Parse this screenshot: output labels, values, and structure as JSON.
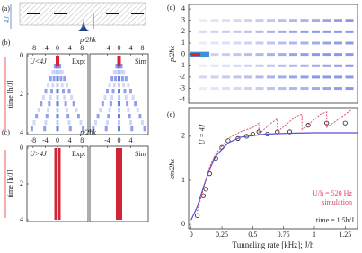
{
  "panel_labels": [
    "(a)",
    "(b)",
    "(c)",
    "(d)",
    "(e)"
  ],
  "a": {
    "scale_label": "4J"
  },
  "b": {
    "x_title": "p/2ħk",
    "left_xticks": [
      -8,
      -4,
      0,
      4,
      8
    ],
    "right_xticks": [
      -4,
      0,
      4,
      8
    ],
    "xlim": [
      -10,
      10
    ],
    "y_title": "time [h/J]",
    "yticks": [
      0,
      2,
      4
    ],
    "ylim": [
      0,
      4
    ],
    "regime": "U<4J",
    "left_label": "Expt",
    "right_label": "Sim"
  },
  "c": {
    "x_title": "p/2ħk",
    "left_xticks": [
      -8,
      -4,
      0,
      4,
      8
    ],
    "right_xticks": [
      -4,
      0,
      4
    ],
    "xlim": [
      -10,
      10
    ],
    "y_title": "time [h/J]",
    "yticks": [
      0,
      2,
      4
    ],
    "ylim": [
      0,
      4
    ],
    "regime": "U>4J",
    "left_label": "Expt",
    "right_label": "Sim"
  },
  "d": {
    "y_title": "p/2ħk",
    "yticks": [
      -4,
      -3,
      -2,
      -1,
      0,
      1,
      2,
      3,
      4
    ],
    "ylim": [
      -4.3,
      4.4
    ]
  },
  "e": {
    "type": "scatter",
    "x_title": "Tunneling rate [kHz]; J/h",
    "y_title": "σn/2ħk",
    "xlim": [
      -0.02,
      1.35
    ],
    "ylim": [
      -0.1,
      2.65
    ],
    "xticks": [
      0,
      0.25,
      0.5,
      0.75,
      1,
      1.25
    ],
    "yticks": [
      0,
      1,
      2
    ],
    "threshold_x": 0.13,
    "series": [
      {
        "name": "Expt",
        "color": "#222222",
        "x": [
          0.05,
          0.1,
          0.12,
          0.15,
          0.2,
          0.25,
          0.3,
          0.38,
          0.45,
          0.5,
          0.55,
          0.62,
          0.7,
          0.8,
          0.95,
          1.1,
          1.25
        ],
        "values": [
          0.2,
          0.65,
          0.8,
          1.15,
          1.5,
          1.75,
          1.9,
          1.95,
          2.0,
          2.05,
          2.1,
          2.05,
          2.1,
          2.1,
          2.25,
          2.3,
          2.3
        ]
      },
      {
        "name": "U/h = 520 Hz",
        "color": "#5a4fd0",
        "x": [
          0,
          0.05,
          0.1,
          0.15,
          0.2,
          0.3,
          0.4,
          0.6,
          0.8,
          1.0,
          1.35
        ],
        "values": [
          0.1,
          0.4,
          0.85,
          1.25,
          1.55,
          1.85,
          1.98,
          2.05,
          2.07,
          2.08,
          2.08
        ]
      },
      {
        "name": "simulation",
        "color": "#e0405a",
        "x": [
          0.05,
          0.1,
          0.15,
          0.2,
          0.3,
          0.4,
          0.5,
          0.55,
          0.55,
          0.65,
          0.7,
          0.7,
          0.85,
          0.9,
          0.9,
          1.05,
          1.1,
          1.1,
          1.25,
          1.3
        ],
        "values": [
          0.3,
          0.8,
          1.3,
          1.6,
          1.95,
          2.1,
          2.2,
          2.3,
          2.05,
          2.3,
          2.4,
          2.1,
          2.45,
          2.5,
          2.15,
          2.5,
          2.55,
          2.2,
          2.5,
          2.6
        ]
      }
    ],
    "annotations": [
      "U = 4J",
      "time = 1.5h/J"
    ]
  }
}
